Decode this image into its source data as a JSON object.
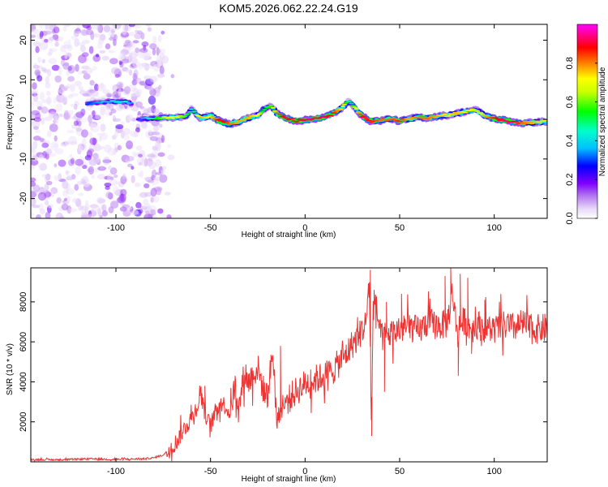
{
  "title": "KOM5.2026.062.22.24.G19",
  "chart_data": [
    {
      "type": "heatmap",
      "name": "spectrogram",
      "xlabel": "Height of straight line (km)",
      "ylabel": "Frequency (Hz)",
      "xlim": [
        -145,
        128
      ],
      "ylim": [
        -25,
        24
      ],
      "xticks": [
        -100,
        -50,
        0,
        50,
        100
      ],
      "yticks": [
        -20,
        -10,
        0,
        10,
        20
      ],
      "colorbar": {
        "label": "Normalized spectral amplitude",
        "range": [
          0,
          1
        ],
        "ticks": [
          0.0,
          0.2,
          0.4,
          0.6,
          0.8
        ],
        "tick_labels": [
          "0.0",
          "0.2",
          "0.4",
          "0.6",
          "0.8"
        ],
        "colormap": [
          "#ffffff",
          "#e8d8f8",
          "#b070f0",
          "#8000ff",
          "#0000ff",
          "#00bfff",
          "#00ffcc",
          "#00ff00",
          "#c8ff00",
          "#ffff00",
          "#ff8000",
          "#ff0000",
          "#ff00ff"
        ]
      },
      "track": {
        "x": [
          -88,
          -80,
          -70,
          -63,
          -60,
          -55,
          -50,
          -45,
          -40,
          -35,
          -30,
          -25,
          -22,
          -18,
          -15,
          -10,
          -5,
          0,
          5,
          10,
          15,
          20,
          23,
          26,
          30,
          35,
          40,
          45,
          50,
          55,
          60,
          65,
          70,
          75,
          80,
          85,
          90,
          95,
          100,
          105,
          110,
          115,
          120,
          128
        ],
        "f": [
          0,
          0.3,
          0.4,
          0.8,
          2.5,
          0.2,
          1.0,
          -0.5,
          -1.2,
          -0.6,
          0.4,
          1.0,
          2.5,
          3.5,
          1.5,
          0.3,
          -0.4,
          -0.2,
          0.2,
          0.5,
          1.5,
          3.0,
          4.5,
          3.2,
          0.8,
          -0.5,
          -0.3,
          0.2,
          -0.5,
          0.1,
          0.6,
          0.3,
          0.8,
          1.0,
          1.5,
          2.0,
          2.5,
          1.0,
          0.2,
          -0.2,
          -0.6,
          -1.0,
          -0.8,
          -0.5
        ],
        "amp": [
          0.35,
          0.55,
          0.75,
          0.6,
          0.5,
          0.8,
          0.75,
          0.95,
          0.85,
          0.8,
          0.8,
          0.75,
          0.55,
          0.6,
          0.85,
          0.95,
          0.9,
          0.95,
          0.95,
          0.95,
          0.9,
          0.75,
          0.5,
          0.65,
          0.95,
          0.9,
          0.85,
          0.85,
          0.9,
          0.8,
          0.85,
          0.85,
          0.8,
          0.75,
          0.8,
          0.75,
          0.65,
          0.8,
          0.9,
          0.95,
          0.95,
          0.85,
          0.8,
          0.75
        ]
      },
      "segment": {
        "x": [
          -115,
          -110,
          -105,
          -100,
          -95,
          -92
        ],
        "f": [
          4,
          4.2,
          4.5,
          4.5,
          4.5,
          4.0
        ],
        "amp": [
          0.35,
          0.4,
          0.45,
          0.45,
          0.5,
          0.4
        ]
      },
      "noise_region": {
        "x": [
          -145,
          -75
        ],
        "f": [
          -25,
          24
        ],
        "amp": [
          0.05,
          0.25
        ]
      }
    },
    {
      "type": "line",
      "name": "snr",
      "xlabel": "Height of straight line (km)",
      "ylabel": "SNR (10 * v/v)",
      "color": "#ee3333",
      "xlim": [
        -145,
        128
      ],
      "ylim": [
        0,
        9700
      ],
      "xticks": [
        -100,
        -50,
        0,
        50,
        100
      ],
      "yticks": [
        2000,
        4000,
        6000,
        8000
      ],
      "x": [
        -145,
        -130,
        -115,
        -100,
        -85,
        -80,
        -75,
        -72,
        -68,
        -65,
        -60,
        -57,
        -55,
        -52,
        -50,
        -47,
        -45,
        -42,
        -40,
        -37,
        -35,
        -32,
        -30,
        -28,
        -25,
        -22,
        -20,
        -17,
        -15,
        -13,
        -10,
        -5,
        0,
        5,
        10,
        15,
        20,
        22,
        25,
        28,
        30,
        32,
        34,
        35,
        36,
        38,
        40,
        45,
        50,
        55,
        60,
        65,
        70,
        75,
        78,
        80,
        85,
        88,
        90,
        95,
        100,
        105,
        110,
        115,
        120,
        128
      ],
      "y": [
        120,
        100,
        150,
        120,
        150,
        200,
        350,
        600,
        1000,
        1500,
        2200,
        2800,
        3500,
        2200,
        1800,
        2600,
        3000,
        2800,
        2400,
        3800,
        2800,
        4500,
        4000,
        4300,
        4700,
        3600,
        3300,
        5500,
        2100,
        2500,
        3000,
        3500,
        3900,
        4100,
        4300,
        4600,
        5200,
        5400,
        5900,
        6200,
        6600,
        6900,
        9000,
        1800,
        7800,
        7600,
        6200,
        6400,
        6600,
        6800,
        6500,
        7000,
        6800,
        6900,
        8500,
        6700,
        7100,
        6600,
        6900,
        6700,
        6600,
        6800,
        6700,
        6900,
        6600,
        6700
      ],
      "spikes": [
        {
          "x": 34.5,
          "y": 9600
        },
        {
          "x": 35.2,
          "y": 1300
        },
        {
          "x": 36.5,
          "y": 8600
        },
        {
          "x": 42,
          "y": 3500
        },
        {
          "x": 43,
          "y": 8000
        },
        {
          "x": 51,
          "y": 8400
        },
        {
          "x": 74,
          "y": 9300
        },
        {
          "x": 77,
          "y": 9700
        },
        {
          "x": 81,
          "y": 4300
        },
        {
          "x": 82,
          "y": 9400
        },
        {
          "x": 86,
          "y": 9200
        },
        {
          "x": 88,
          "y": 5400
        },
        {
          "x": 95,
          "y": 8100
        },
        {
          "x": -13,
          "y": 5800
        },
        {
          "x": -53,
          "y": 3800
        }
      ]
    }
  ]
}
